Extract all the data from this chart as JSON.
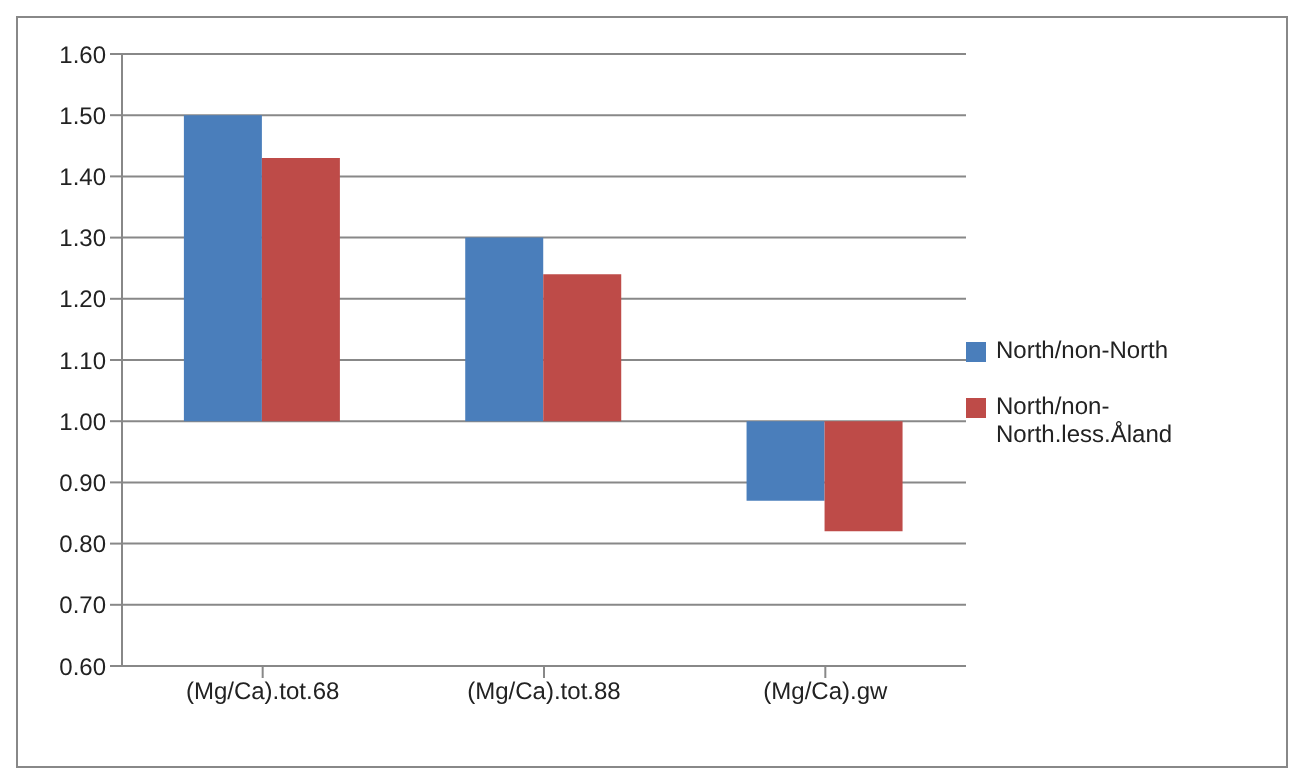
{
  "chart_data": {
    "type": "bar",
    "categories": [
      "(Mg/Ca).tot.68",
      "(Mg/Ca).tot.88",
      "(Mg/Ca).gw"
    ],
    "series": [
      {
        "name": "North/non-North",
        "color": "#4a7ebb",
        "values": [
          0.5,
          0.3,
          -0.13
        ],
        "base": [
          1,
          1,
          1
        ]
      },
      {
        "name": "North/non-North.less.Åland",
        "color": "#be4b48",
        "values": [
          0.43,
          0.24,
          -0.18
        ],
        "base": [
          1,
          1,
          1
        ]
      }
    ],
    "ylim": [
      0.6,
      1.6
    ],
    "yticks": [
      {
        "value": 0.6,
        "label": "0.60"
      },
      {
        "value": 0.7,
        "label": "0.70"
      },
      {
        "value": 0.8,
        "label": "0.80"
      },
      {
        "value": 0.9,
        "label": "0.90"
      },
      {
        "value": 1.0,
        "label": "1.00"
      },
      {
        "value": 1.1,
        "label": "1.10"
      },
      {
        "value": 1.2,
        "label": "1.20"
      },
      {
        "value": 1.3,
        "label": "1.30"
      },
      {
        "value": 1.4,
        "label": "1.40"
      },
      {
        "value": 1.5,
        "label": "1.50"
      },
      {
        "value": 1.6,
        "label": "1.60"
      }
    ],
    "grid": "y",
    "legend": "right"
  }
}
